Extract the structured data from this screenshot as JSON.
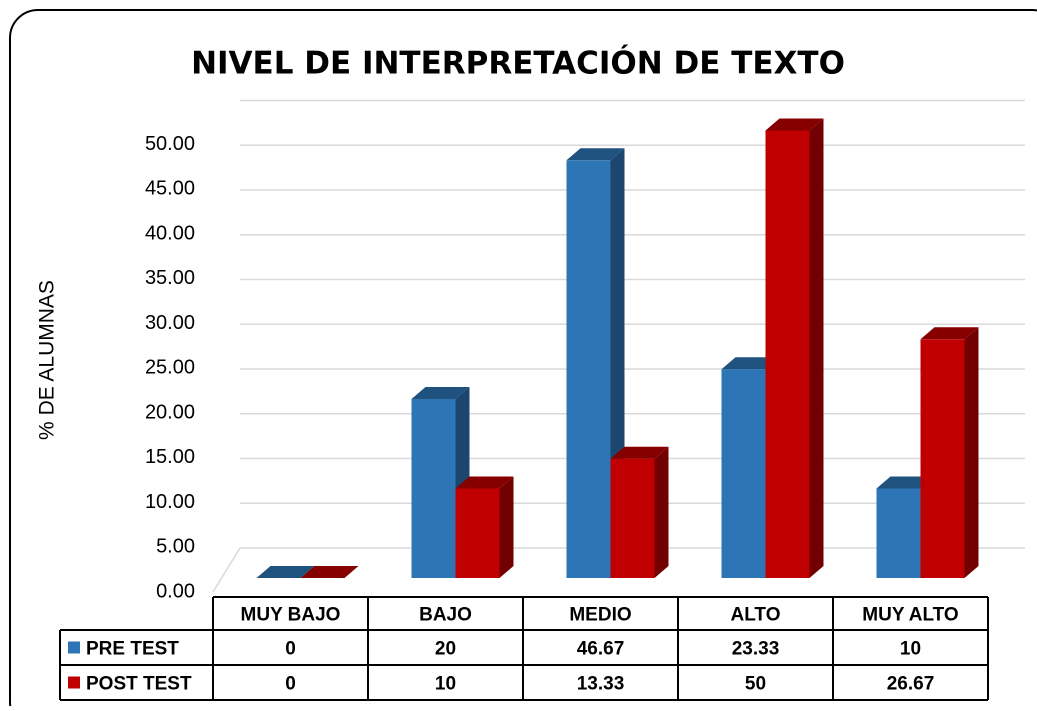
{
  "chart_data": {
    "type": "bar3d",
    "title": "NIVEL DE INTERPRETACIÓN DE TEXTO",
    "y_label": "% DE ALUMNAS",
    "categories": [
      "MUY BAJO",
      "BAJO",
      "MEDIO",
      "ALTO",
      "MUY ALTO"
    ],
    "series": [
      {
        "name": "PRE TEST",
        "color": "#2e75b6",
        "values": [
          0,
          20,
          46.67,
          23.33,
          10
        ]
      },
      {
        "name": "POST TEST",
        "color": "#c00000",
        "values": [
          0,
          10,
          13.33,
          50,
          26.67
        ]
      }
    ],
    "ylim": [
      0,
      50
    ],
    "yticks": [
      {
        "value": 0,
        "label": "0.00"
      },
      {
        "value": 5,
        "label": "5.00"
      },
      {
        "value": 10,
        "label": "10.00"
      },
      {
        "value": 15,
        "label": "15.00"
      },
      {
        "value": 20,
        "label": "20.00"
      },
      {
        "value": 25,
        "label": "25.00"
      },
      {
        "value": 30,
        "label": "30.00"
      },
      {
        "value": 35,
        "label": "35.00"
      },
      {
        "value": 40,
        "label": "40.00"
      },
      {
        "value": 45,
        "label": "45.00"
      },
      {
        "value": 50,
        "label": "50.00"
      }
    ],
    "grid": true
  }
}
